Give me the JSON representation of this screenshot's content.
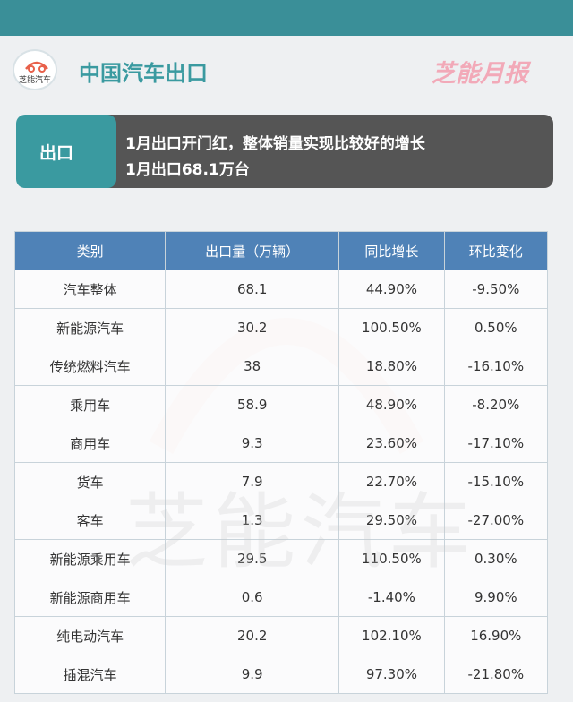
{
  "header": {
    "logo_text": "芝能汽车",
    "title": "中国汽车出口",
    "brand": "芝能月报"
  },
  "banner": {
    "label": "出口",
    "lines": [
      "1月出口开门红，整体销量实现比较好的增长",
      "1月出口68.1万台"
    ]
  },
  "table": {
    "columns": [
      "类别",
      "出口量（万辆）",
      "同比增长",
      "环比变化"
    ],
    "rows": [
      [
        "汽车整体",
        "68.1",
        "44.90%",
        "-9.50%"
      ],
      [
        "新能源汽车",
        "30.2",
        "100.50%",
        "0.50%"
      ],
      [
        "传统燃料汽车",
        "38",
        "18.80%",
        "-16.10%"
      ],
      [
        "乘用车",
        "58.9",
        "48.90%",
        "-8.20%"
      ],
      [
        "商用车",
        "9.3",
        "23.60%",
        "-17.10%"
      ],
      [
        "货车",
        "7.9",
        "22.70%",
        "-15.10%"
      ],
      [
        "客车",
        "1.3",
        "29.50%",
        "-27.00%"
      ],
      [
        "新能源乘用车",
        "29.5",
        "110.50%",
        "0.30%"
      ],
      [
        "新能源商用车",
        "0.6",
        "-1.40%",
        "9.90%"
      ],
      [
        "纯电动汽车",
        "20.2",
        "102.10%",
        "16.90%"
      ],
      [
        "插混汽车",
        "9.9",
        "97.30%",
        "-21.80%"
      ]
    ]
  },
  "watermark": "芝能汽车"
}
